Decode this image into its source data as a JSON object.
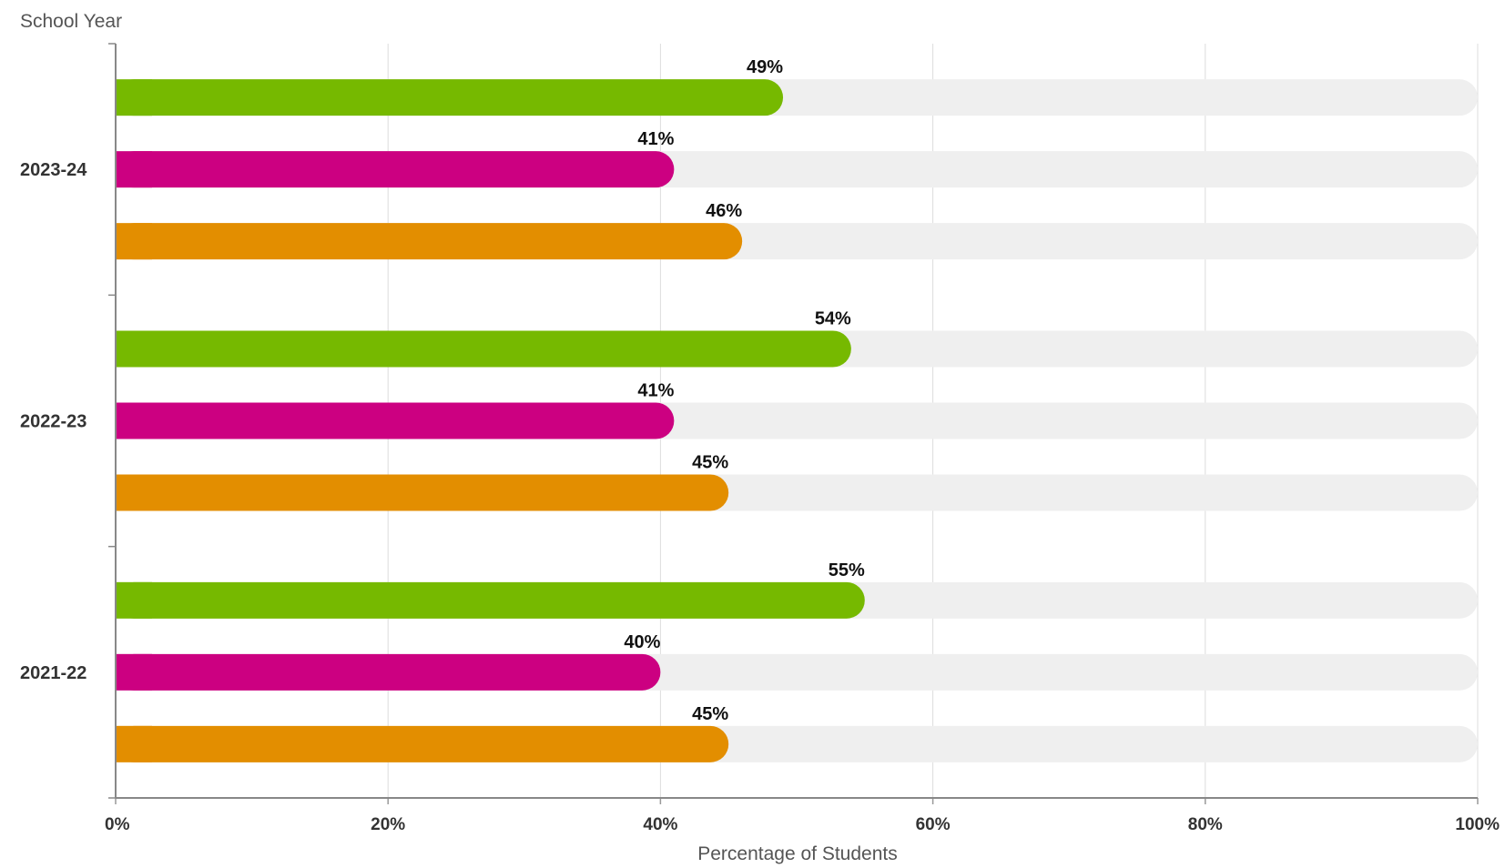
{
  "chart_data": {
    "type": "bar",
    "orientation": "horizontal",
    "title": "",
    "ylabel": "School Year",
    "xlabel": "Percentage of Students",
    "xlim": [
      0,
      100
    ],
    "x_ticks": [
      "0%",
      "20%",
      "40%",
      "60%",
      "80%",
      "100%"
    ],
    "grid": "vertical",
    "categories": [
      "2023-24",
      "2022-23",
      "2021-22"
    ],
    "series": [
      {
        "color": "#76b900",
        "values": [
          49,
          54,
          55
        ]
      },
      {
        "color": "#cc0081",
        "values": [
          41,
          41,
          40
        ]
      },
      {
        "color": "#e38e00",
        "values": [
          46,
          45,
          45
        ]
      }
    ],
    "track_color": "#efefef",
    "value_suffix": "%"
  }
}
